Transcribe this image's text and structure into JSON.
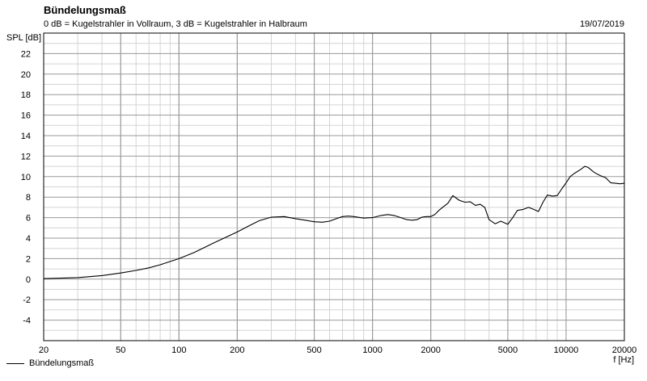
{
  "chart_data": {
    "type": "line",
    "title": "Bündelungsmaß",
    "subtitle": "0 dB = Kugelstrahler in Vollraum, 3 dB = Kugelstrahler in Halbraum",
    "date": "19/07/2019",
    "ylabel": "SPL [dB]",
    "xlabel": "f [Hz]",
    "x_scale": "log",
    "xlim": [
      20,
      20000
    ],
    "ylim": [
      -6,
      24
    ],
    "grid": true,
    "legend_position": "bottom-left",
    "x_ticks": [
      "20",
      "50",
      "100",
      "200",
      "500",
      "1000",
      "2000",
      "5000",
      "10000",
      "20000"
    ],
    "y_ticks": [
      "22",
      "20",
      "18",
      "16",
      "14",
      "12",
      "10",
      "8",
      "6",
      "4",
      "2",
      "0",
      "-2",
      "-4"
    ],
    "series": [
      {
        "name": "Bündelungsmaß",
        "color": "#000000",
        "x": [
          20,
          30,
          40,
          50,
          60,
          70,
          80,
          100,
          120,
          150,
          200,
          230,
          260,
          300,
          350,
          400,
          450,
          500,
          550,
          600,
          650,
          700,
          750,
          800,
          900,
          1000,
          1100,
          1200,
          1300,
          1400,
          1500,
          1600,
          1700,
          1800,
          1900,
          2000,
          2100,
          2200,
          2300,
          2450,
          2600,
          2800,
          3000,
          3200,
          3400,
          3600,
          3800,
          4000,
          4300,
          4600,
          5000,
          5300,
          5600,
          6000,
          6400,
          6800,
          7200,
          7600,
          8000,
          8500,
          9000,
          9500,
          10000,
          10500,
          11000,
          12000,
          12500,
          13000,
          14000,
          15000,
          16000,
          17000,
          18000,
          19000,
          20000
        ],
        "values": [
          0.05,
          0.15,
          0.35,
          0.6,
          0.85,
          1.1,
          1.4,
          2.0,
          2.6,
          3.5,
          4.6,
          5.2,
          5.7,
          6.05,
          6.1,
          5.9,
          5.75,
          5.6,
          5.55,
          5.65,
          5.9,
          6.1,
          6.15,
          6.1,
          5.95,
          6.0,
          6.2,
          6.3,
          6.2,
          6.0,
          5.8,
          5.75,
          5.8,
          6.05,
          6.1,
          6.1,
          6.3,
          6.7,
          7.0,
          7.4,
          8.15,
          7.7,
          7.5,
          7.55,
          7.2,
          7.3,
          7.0,
          5.8,
          5.4,
          5.65,
          5.35,
          6.0,
          6.7,
          6.8,
          7.0,
          6.8,
          6.6,
          7.5,
          8.2,
          8.1,
          8.15,
          8.8,
          9.4,
          10.0,
          10.3,
          10.75,
          11.0,
          10.9,
          10.4,
          10.1,
          9.9,
          9.4,
          9.35,
          9.3,
          9.35
        ]
      }
    ]
  }
}
